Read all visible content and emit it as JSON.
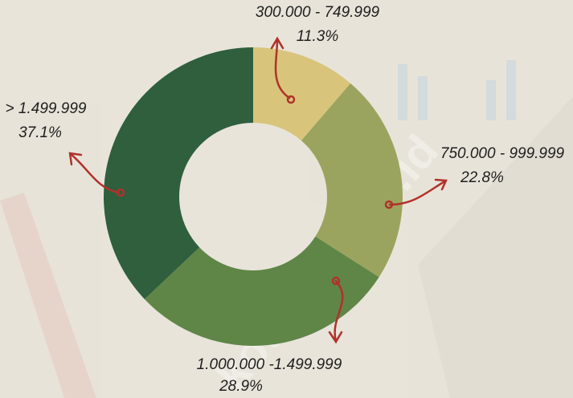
{
  "chart_data": {
    "type": "donut",
    "categories": [
      "300.000 - 749.999",
      "750.000 - 999.999",
      "1.000.000 -1.499.999",
      "> 1.499.999"
    ],
    "values": [
      11.3,
      22.8,
      28.9,
      37.1
    ],
    "value_labels": [
      "11.3%",
      "22.8%",
      "28.9%",
      "37.1%"
    ],
    "colors": [
      "#d8c57b",
      "#9ba45f",
      "#5f8647",
      "#2f5f3d"
    ],
    "watermark": "kota.bps.go.id"
  }
}
